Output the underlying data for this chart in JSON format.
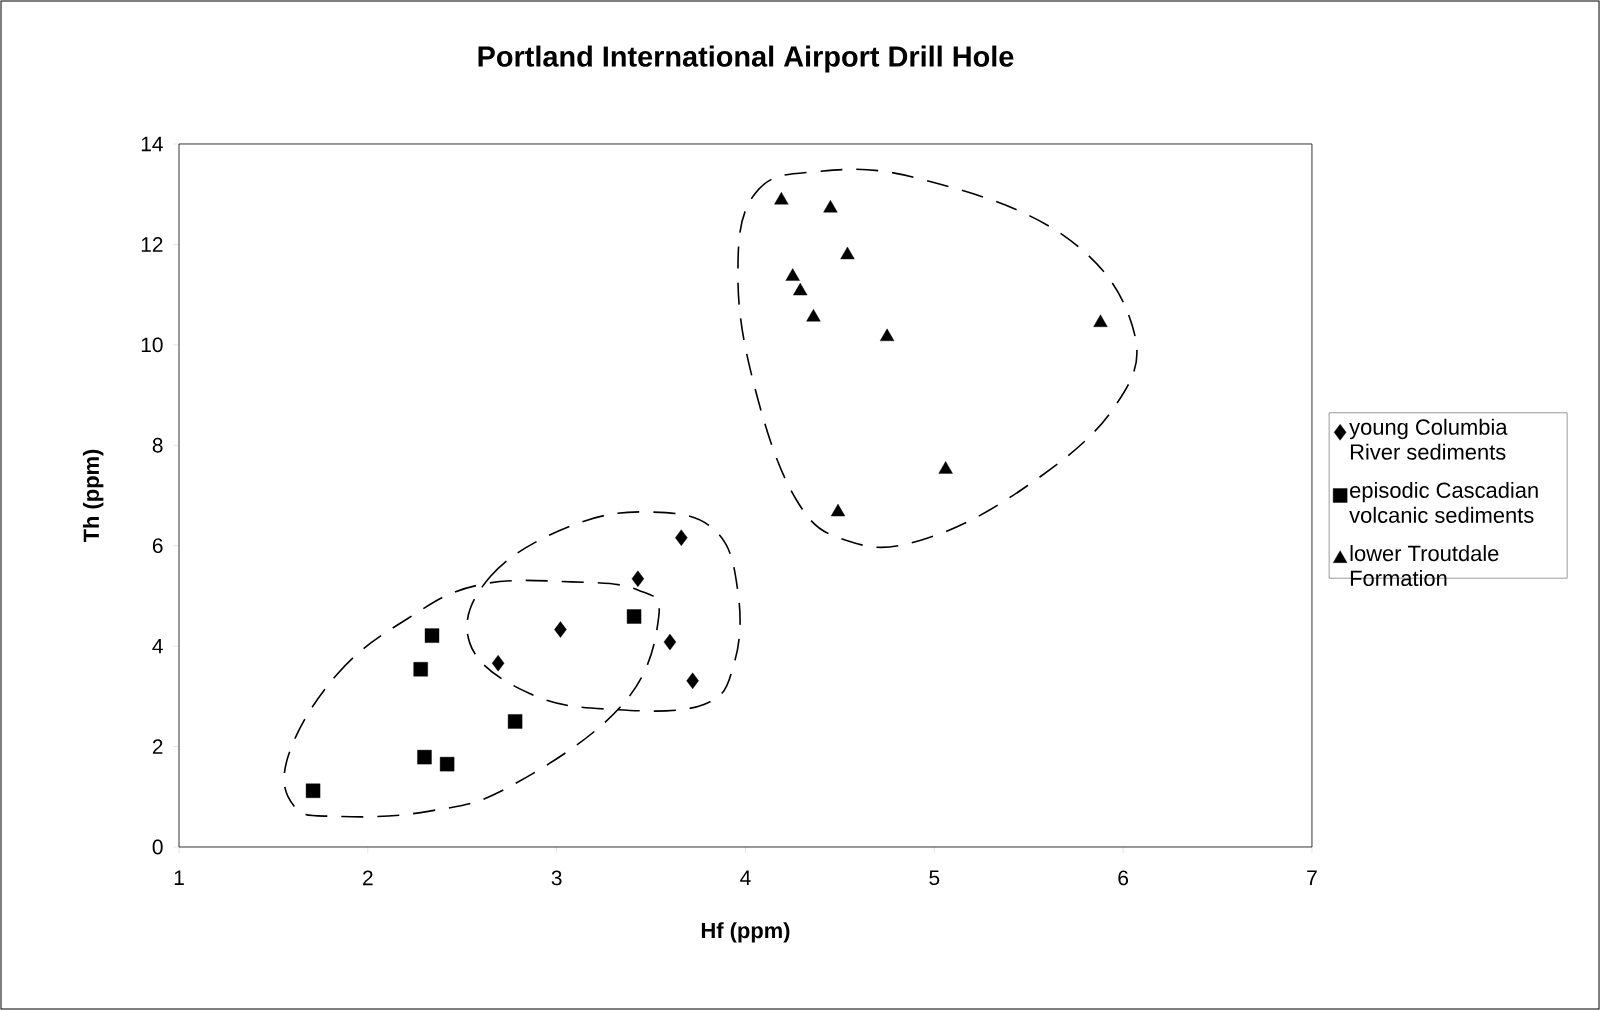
{
  "chart_data": {
    "type": "scatter",
    "title": "Portland International Airport Drill Hole",
    "xlabel": "Hf (ppm)",
    "ylabel": "Th (ppm)",
    "xlim": [
      1,
      7
    ],
    "xticks": [
      1,
      2,
      3,
      4,
      5,
      6,
      7
    ],
    "ylim": [
      0,
      14
    ],
    "yticks": [
      0,
      2,
      4,
      6,
      8,
      10,
      12,
      14
    ],
    "grid": false,
    "legend": "right",
    "series": [
      {
        "name": "young Columbia River sediments",
        "color": "#000000",
        "marker": "diamond",
        "x": [
          2.69,
          3.02,
          3.43,
          3.6,
          3.66,
          3.72
        ],
        "values": [
          3.66,
          4.33,
          5.34,
          4.08,
          6.16,
          3.31
        ]
      },
      {
        "name": "episodic Cascadian volcanic sediments",
        "color": "#000000",
        "marker": "square",
        "x": [
          1.71,
          2.28,
          2.34,
          2.3,
          2.42,
          2.78,
          3.41
        ],
        "values": [
          1.12,
          3.54,
          4.21,
          1.79,
          1.65,
          2.5,
          4.59
        ]
      },
      {
        "name": "lower Troutdale Formation",
        "color": "#000000",
        "marker": "triangle",
        "x": [
          4.19,
          4.45,
          4.54,
          4.25,
          4.29,
          4.36,
          4.75,
          5.88,
          5.06,
          4.49
        ],
        "values": [
          12.88,
          12.72,
          11.79,
          11.36,
          11.07,
          10.55,
          10.16,
          10.44,
          7.52,
          6.67
        ]
      }
    ]
  }
}
